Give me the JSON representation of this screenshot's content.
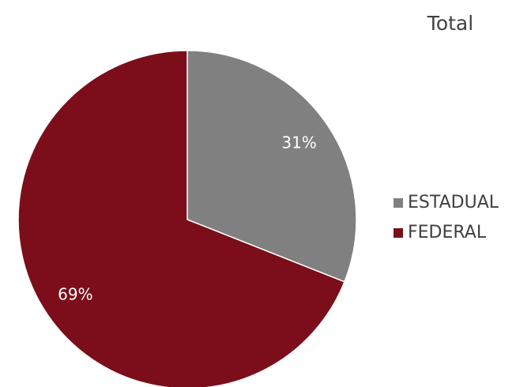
{
  "chart_data": {
    "type": "pie",
    "title": "Total",
    "categories": [
      "ESTADUAL",
      "FEDERAL"
    ],
    "values": [
      31,
      69
    ],
    "value_labels": [
      "31%",
      "69%"
    ],
    "colors": [
      "#808080",
      "#7b0e1a"
    ],
    "legend": "right"
  }
}
